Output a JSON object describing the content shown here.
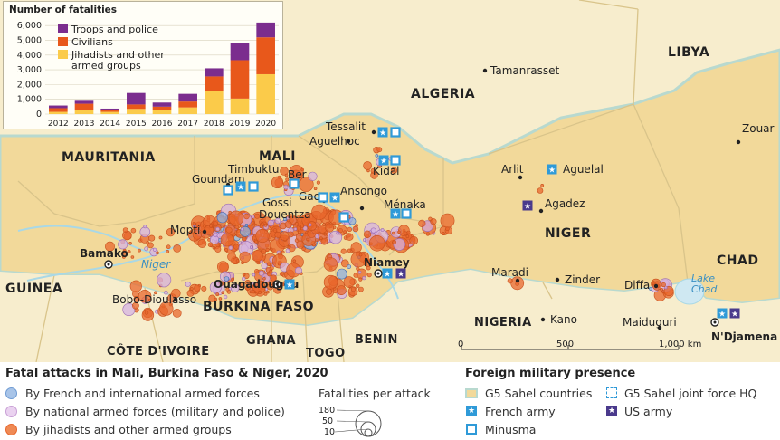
{
  "inset_chart": {
    "title": "Number of fatalities",
    "legend": [
      {
        "name": "Troops and police",
        "color": "#7b2d8e"
      },
      {
        "name": "Civilians",
        "color": "#e8581b"
      },
      {
        "name": "Jihadists and other",
        "name2": "armed groups",
        "color": "#fbcb4a"
      }
    ],
    "y_ticks": [
      "6,000",
      "5,000",
      "4,000",
      "3,000",
      "2,000",
      "1,000",
      "0"
    ]
  },
  "chart_data": {
    "type": "bar",
    "title": "Number of fatalities",
    "categories": [
      "2012",
      "2013",
      "2014",
      "2015",
      "2016",
      "2017",
      "2018",
      "2019",
      "2020"
    ],
    "series": [
      {
        "name": "Jihadists and other armed groups",
        "values": [
          150,
          300,
          150,
          350,
          300,
          450,
          1550,
          1050,
          2700
        ]
      },
      {
        "name": "Civilians",
        "values": [
          250,
          400,
          100,
          300,
          200,
          400,
          1000,
          2600,
          2500
        ]
      },
      {
        "name": "Troops and police",
        "values": [
          180,
          200,
          120,
          780,
          280,
          520,
          550,
          1150,
          1000
        ]
      }
    ],
    "ylim": [
      0,
      6500
    ],
    "stacked": true
  },
  "countries": {
    "mauritania": "MAURITANIA",
    "mali": "MALI",
    "algeria": "ALGERIA",
    "libya": "LIBYA",
    "niger": "NIGER",
    "chad": "CHAD",
    "guinea": "GUINEA",
    "burkina": "BURKINA FASO",
    "cotedivoire": "CÔTE D'IVOIRE",
    "ghana": "GHANA",
    "togo": "TOGO",
    "benin": "BENIN",
    "nigeria": "NIGERIA"
  },
  "places": {
    "tamanrasset": "Tamanrasset",
    "tessalit": "Tessalit",
    "aguelhoc": "Aguelhoc",
    "kidal": "Kidal",
    "timbuktu": "Timbuktu",
    "goundam": "Goundam",
    "ber": "Ber",
    "gao": "Gao",
    "gossi": "Gossi",
    "ansongo": "Ansongo",
    "menaka": "Ménaka",
    "douentza": "Douentza",
    "mopti": "Mopti",
    "bamako": "Bamako",
    "niger_river": "Niger",
    "ouagadougou": "Ouagadougou",
    "bobo": "Bobo-Dioulasso",
    "niamey": "Niamey",
    "arlit": "Arlit",
    "aguelal": "Aguelal",
    "agadez": "Agadez",
    "maradi": "Maradi",
    "zinder": "Zinder",
    "diffa": "Diffa",
    "lake_chad": "Lake",
    "lake_chad2": "Chad",
    "kano": "Kano",
    "maiduguri": "Maiduguri",
    "ndjamena": "N'Djamena",
    "zouar": "Zouar"
  },
  "scale": {
    "zero": "0",
    "mid": "500",
    "end": "1,000 km"
  },
  "legend": {
    "attacks_title": "Fatal attacks in Mali, Burkina Faso & Niger, 2020",
    "french": "By French and international armed forces",
    "national": "By national armed forces (military and police)",
    "jihadist": "By jihadists and other armed groups",
    "fatalities_title": "Fatalities per attack",
    "f180": "180",
    "f50": "50",
    "f10": "10",
    "foreign_title": "Foreign military presence",
    "g5": "G5 Sahel countries",
    "g5hq": "G5 Sahel joint force HQ",
    "french_army": "French army",
    "us_army": "US army",
    "minusma": "Minusma"
  },
  "colors": {
    "g5_land": "#f2d99a",
    "other_land": "#f7edcd",
    "jihadist": "#e8672c",
    "national": "#c9a0d6",
    "french": "#6f9bd3",
    "base_blue": "#2f9ad8",
    "us_purple": "#4a3a8c"
  }
}
